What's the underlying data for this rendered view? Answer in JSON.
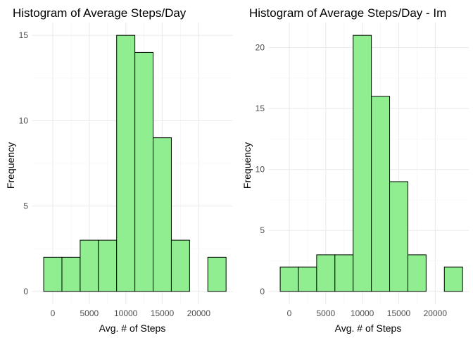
{
  "chart_data": [
    {
      "type": "bar",
      "title": "Histogram of Average Steps/Day",
      "xlabel": "Avg. # of Steps",
      "ylabel": "Frequency",
      "bar_fill": "#90ee90",
      "bar_outline": "#000000",
      "bin_width": 2500,
      "bin_centers": [
        0,
        2500,
        5000,
        7500,
        10000,
        12500,
        15000,
        17500,
        20000,
        22500
      ],
      "values": [
        2,
        2,
        3,
        3,
        15,
        14,
        9,
        3,
        0,
        2
      ],
      "xlim": [
        -2800,
        24600
      ],
      "ylim": [
        -0.75,
        15.75
      ],
      "x_ticks": [
        0,
        5000,
        10000,
        15000,
        20000
      ],
      "x_tick_labels": [
        "0",
        "5000",
        "10000",
        "15000",
        "20000"
      ],
      "y_ticks": [
        0,
        5,
        10,
        15
      ],
      "y_tick_labels": [
        "0",
        "5",
        "10",
        "15"
      ],
      "grid": true
    },
    {
      "type": "bar",
      "title": "Histogram of Average Steps/Day - Im",
      "xlabel": "Avg. # of Steps",
      "ylabel": "Frequency",
      "bar_fill": "#90ee90",
      "bar_outline": "#000000",
      "bin_width": 2500,
      "bin_centers": [
        0,
        2500,
        5000,
        7500,
        10000,
        12500,
        15000,
        17500,
        20000,
        22500
      ],
      "values": [
        2,
        2,
        3,
        3,
        21,
        16,
        9,
        3,
        0,
        2
      ],
      "xlim": [
        -2800,
        24600
      ],
      "ylim": [
        -1.05,
        22.05
      ],
      "x_ticks": [
        0,
        5000,
        10000,
        15000,
        20000
      ],
      "x_tick_labels": [
        "0",
        "5000",
        "10000",
        "15000",
        "20000"
      ],
      "y_ticks": [
        0,
        5,
        10,
        15,
        20
      ],
      "y_tick_labels": [
        "0",
        "5",
        "10",
        "15",
        "20"
      ],
      "grid": true
    }
  ]
}
